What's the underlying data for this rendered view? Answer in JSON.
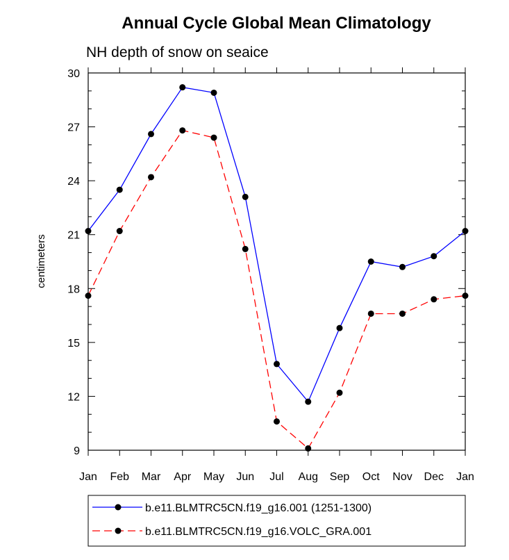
{
  "chart_data": {
    "type": "line",
    "title": "Annual Cycle Global Mean Climatology",
    "subtitle": "NH depth of snow on seaice",
    "xlabel": "",
    "ylabel": "centimeters",
    "categories": [
      "Jan",
      "Feb",
      "Mar",
      "Apr",
      "May",
      "Jun",
      "Jul",
      "Aug",
      "Sep",
      "Oct",
      "Nov",
      "Dec",
      "Jan"
    ],
    "ylim": [
      9,
      30
    ],
    "yticks": [
      9,
      12,
      15,
      18,
      21,
      24,
      27,
      30
    ],
    "grid": false,
    "legend_position": "bottom",
    "series": [
      {
        "name": "b.e11.BLMTRC5CN.f19_g16.001 (1251-1300)",
        "color": "#0000ff",
        "dash": "solid",
        "marker": "filled-circle",
        "values": [
          21.2,
          23.5,
          26.6,
          29.2,
          28.9,
          23.1,
          13.8,
          11.7,
          15.8,
          19.5,
          19.2,
          19.8,
          21.2
        ]
      },
      {
        "name": "b.e11.BLMTRC5CN.f19_g16.VOLC_GRA.001",
        "color": "#ff0000",
        "dash": "dashed",
        "marker": "filled-circle",
        "values": [
          17.6,
          21.2,
          24.2,
          26.8,
          26.4,
          20.2,
          10.6,
          9.1,
          12.2,
          16.6,
          16.6,
          17.4,
          17.6
        ]
      }
    ]
  }
}
